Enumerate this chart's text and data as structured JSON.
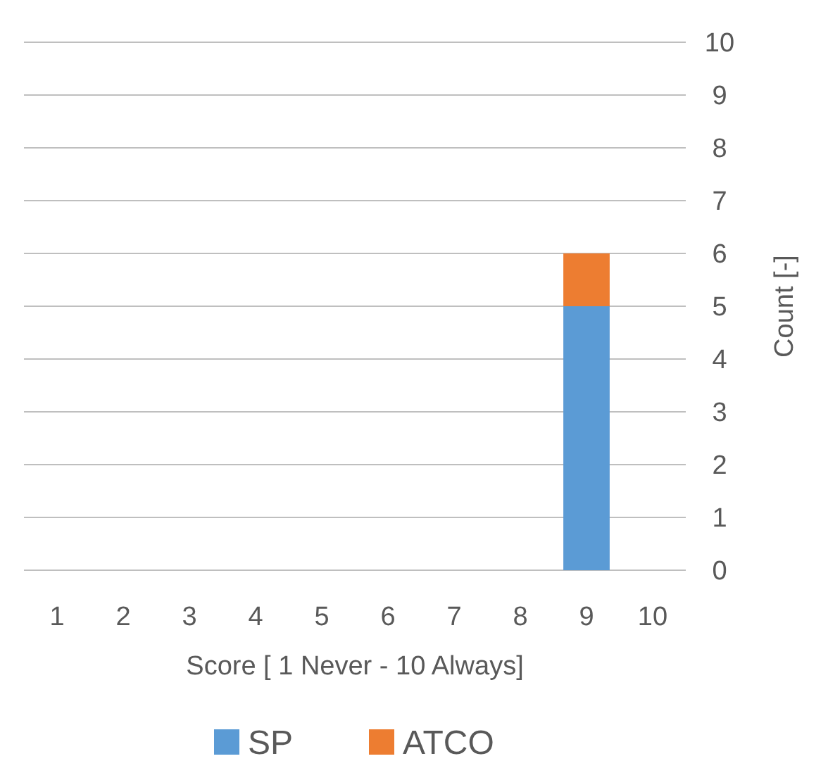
{
  "chart_data": {
    "type": "bar",
    "stacked": true,
    "xlabel": "Score [ 1 Never - 10 Always]",
    "ylabel": "Count [-]",
    "categories": [
      "1",
      "2",
      "3",
      "4",
      "5",
      "6",
      "7",
      "8",
      "9",
      "10"
    ],
    "series": [
      {
        "name": "SP",
        "color": "#5b9bd5",
        "values": [
          0,
          0,
          0,
          0,
          0,
          0,
          0,
          0,
          5,
          0
        ]
      },
      {
        "name": "ATCO",
        "color": "#ed7d31",
        "values": [
          0,
          0,
          0,
          0,
          0,
          0,
          0,
          0,
          1,
          0
        ]
      }
    ],
    "ylim": [
      0,
      10
    ],
    "yticks": [
      0,
      1,
      2,
      3,
      4,
      5,
      6,
      7,
      8,
      9,
      10
    ],
    "grid": "y",
    "legend": "bottom"
  }
}
